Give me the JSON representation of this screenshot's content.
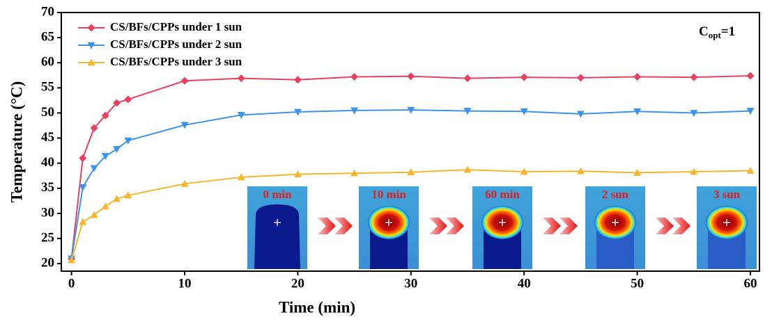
{
  "chart_data": {
    "type": "line",
    "x_label": "Time (min)",
    "y_label": "Temperature (°C)",
    "annotation": [
      "C",
      "opt",
      "=1"
    ],
    "x": [
      0,
      1,
      2,
      3,
      4,
      5,
      10,
      15,
      20,
      25,
      30,
      35,
      40,
      45,
      50,
      55,
      60
    ],
    "series": [
      {
        "name": "CS/BFs/CPPs under 1 sun",
        "color": "#e8405e",
        "marker": "diamond",
        "values": [
          21,
          41,
          47,
          49.5,
          52,
          52.7,
          56.4,
          56.9,
          56.6,
          57.2,
          57.3,
          56.9,
          57.1,
          57.0,
          57.2,
          57.1,
          57.4
        ]
      },
      {
        "name": "CS/BFs/CPPs under 2 sun",
        "color": "#3c93e8",
        "marker": "triangle-down",
        "values": [
          21,
          35.2,
          39,
          41.4,
          42.8,
          44.5,
          47.6,
          49.6,
          50.2,
          50.5,
          50.6,
          50.4,
          50.3,
          49.8,
          50.3,
          50.0,
          50.4
        ]
      },
      {
        "name": "CS/BFs/CPPs under 3 sun",
        "color": "#f5b52e",
        "marker": "triangle-up",
        "values": [
          20.7,
          28.3,
          29.7,
          31.4,
          32.9,
          33.6,
          35.9,
          37.2,
          37.8,
          38.0,
          38.2,
          38.7,
          38.3,
          38.4,
          38.1,
          38.3,
          38.5
        ]
      }
    ],
    "xlim": [
      -0.9,
      60.8
    ],
    "ylim": [
      18.5,
      70
    ],
    "xticks": [
      0,
      10,
      20,
      30,
      40,
      50,
      60
    ],
    "yticks": [
      20,
      25,
      30,
      35,
      40,
      45,
      50,
      55,
      60,
      65,
      70
    ],
    "insets": [
      "0 min",
      "10 min",
      "60 min",
      "2 sun",
      "3 sun"
    ]
  }
}
